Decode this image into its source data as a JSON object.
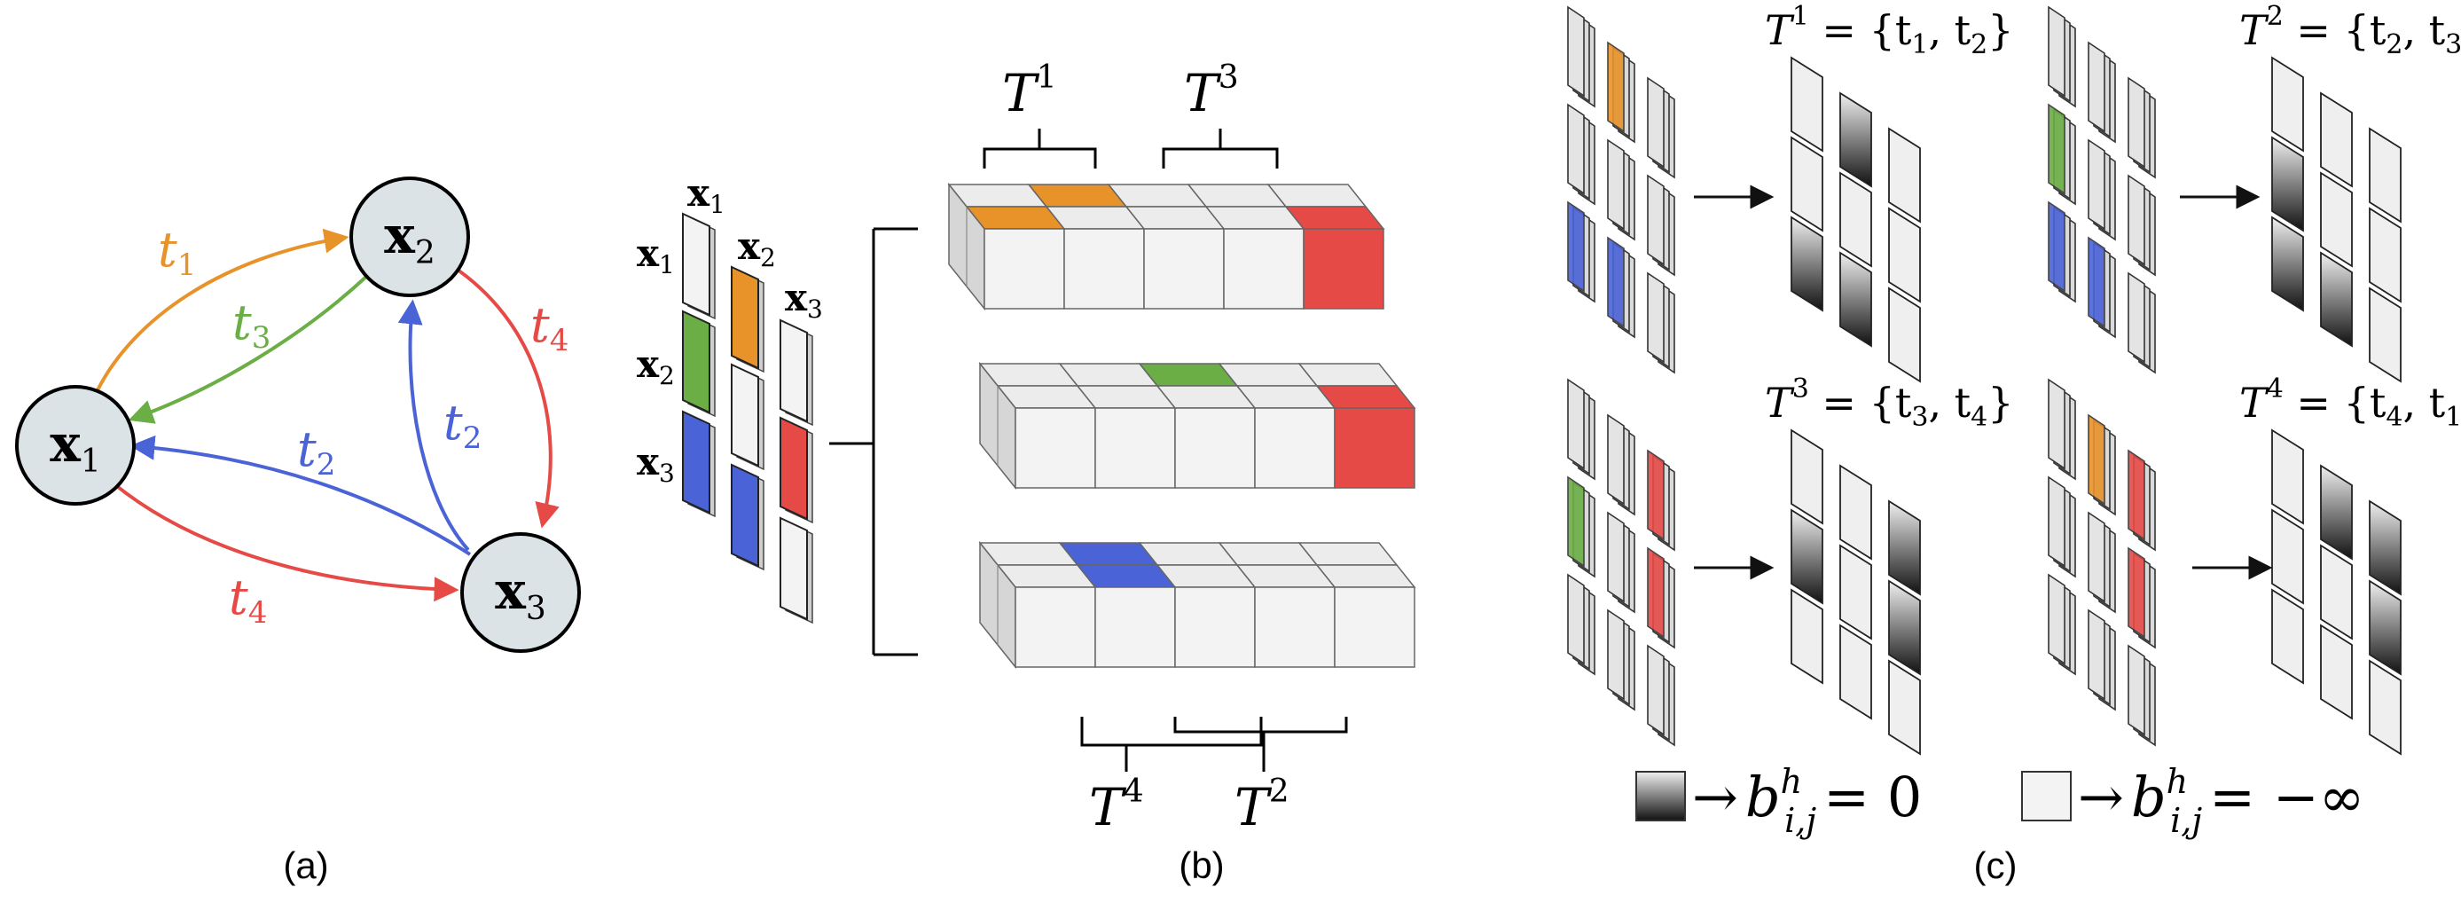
{
  "colors": {
    "orange": "#E8922A",
    "green": "#6BAE45",
    "blue": "#4A63D6",
    "red": "#E64A47",
    "node_fill": "#DCE3E6",
    "cell_light": "#EEEEEE",
    "cell_face": "#F3F3F3",
    "cell_side": "#D6D6D6"
  },
  "panel_a": {
    "caption": "(a)",
    "nodes": [
      {
        "id": "x1",
        "label": "x",
        "sub": "1"
      },
      {
        "id": "x2",
        "label": "x",
        "sub": "2"
      },
      {
        "id": "x3",
        "label": "x",
        "sub": "3"
      }
    ],
    "edges": [
      {
        "from": "x1",
        "to": "x2",
        "label": "t",
        "sub": "1",
        "color": "orange"
      },
      {
        "from": "x2",
        "to": "x1",
        "label": "t",
        "sub": "3",
        "color": "green"
      },
      {
        "from": "x3",
        "to": "x2",
        "label": "t",
        "sub": "2",
        "color": "blue"
      },
      {
        "from": "x3",
        "to": "x1",
        "label": "t",
        "sub": "2",
        "color": "blue"
      },
      {
        "from": "x2",
        "to": "x3",
        "label": "t",
        "sub": "4",
        "color": "red"
      },
      {
        "from": "x1",
        "to": "x3",
        "label": "t",
        "sub": "4",
        "color": "red"
      }
    ]
  },
  "panel_b": {
    "caption": "(b)",
    "col_headers": [
      {
        "label": "x",
        "sub": "1"
      },
      {
        "label": "x",
        "sub": "2"
      },
      {
        "label": "x",
        "sub": "3"
      }
    ],
    "row_headers": [
      {
        "label": "x",
        "sub": "1"
      },
      {
        "label": "x",
        "sub": "2"
      },
      {
        "label": "x",
        "sub": "3"
      }
    ],
    "top_braces": [
      {
        "label": "T",
        "sup": "1"
      },
      {
        "label": "T",
        "sup": "3"
      }
    ],
    "bottom_braces": [
      {
        "label": "T",
        "sup": "4"
      },
      {
        "label": "T",
        "sup": "2"
      }
    ]
  },
  "panel_c": {
    "caption": "(c)",
    "blocks": [
      {
        "name": "T",
        "sup": "1",
        "set": "{t",
        "s1": "1",
        "mid": ", t",
        "s2": "2",
        "end": "}"
      },
      {
        "name": "T",
        "sup": "2",
        "set": "{t",
        "s1": "2",
        "mid": ", t",
        "s2": "3",
        "end": "}"
      },
      {
        "name": "T",
        "sup": "3",
        "set": "{t",
        "s1": "3",
        "mid": ", t",
        "s2": "4",
        "end": "}"
      },
      {
        "name": "T",
        "sup": "4",
        "set": "{t",
        "s1": "4",
        "mid": ", t",
        "s2": "1",
        "end": "}"
      }
    ],
    "legend": [
      {
        "arrow": "→",
        "b": "b",
        "sup": "h",
        "sub": "i,j",
        "value": "= 0"
      },
      {
        "arrow": "→",
        "b": "b",
        "sup": "h",
        "sub": "i,j",
        "value": "= −∞"
      }
    ]
  }
}
